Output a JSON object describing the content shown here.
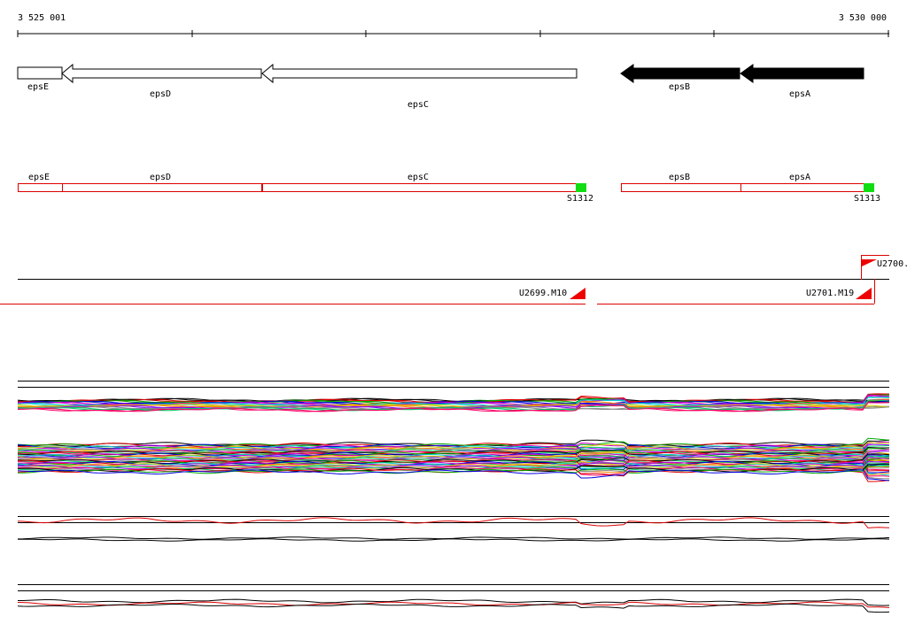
{
  "ruler": {
    "start_label": "3 525 001",
    "end_label": "3 530 000"
  },
  "genes": [
    {
      "label": "epsE"
    },
    {
      "label": "epsD"
    },
    {
      "label": "epsC"
    },
    {
      "label": "epsB"
    },
    {
      "label": "epsA"
    }
  ],
  "operons": [
    {
      "label": "epsE"
    },
    {
      "label": "epsD"
    },
    {
      "label": "epsC"
    },
    {
      "label": "epsB"
    },
    {
      "label": "epsA"
    }
  ],
  "sites": [
    {
      "label": "S1312"
    },
    {
      "label": "S1313"
    }
  ],
  "transcripts": [
    {
      "label": "U2700."
    },
    {
      "label": "U2699.M10"
    },
    {
      "label": "U2701.M19"
    }
  ]
}
